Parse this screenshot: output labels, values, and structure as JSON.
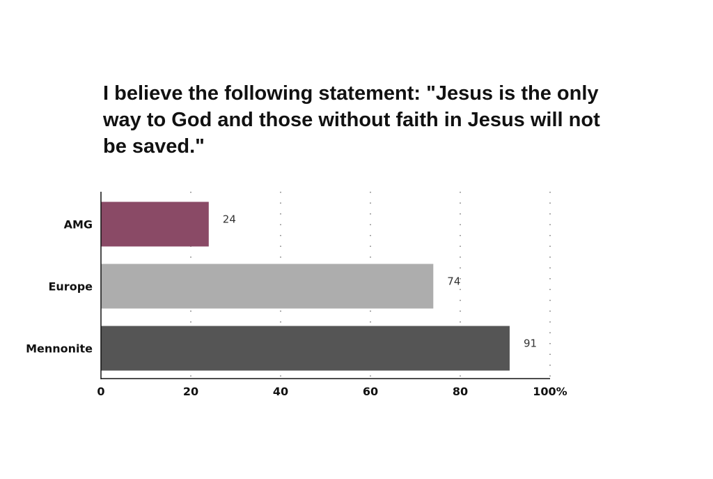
{
  "chart_data": {
    "type": "bar",
    "orientation": "horizontal",
    "title": "I believe the following statement: \"Jesus is the only way to God and those without faith in Jesus will not be saved.\"",
    "categories": [
      "AMG",
      "Europe",
      "Mennonite"
    ],
    "values": [
      24,
      74,
      91
    ],
    "data_labels": [
      "24",
      "74",
      "91"
    ],
    "colors": [
      "#8a4a66",
      "#adadad",
      "#555555"
    ],
    "xlim": [
      0,
      100
    ],
    "x_ticks": [
      0,
      20,
      40,
      60,
      80,
      100
    ],
    "x_tick_labels": [
      "0",
      "20",
      "40",
      "60",
      "80",
      "100%"
    ],
    "grid": "vertical-dotted",
    "legend": "none"
  }
}
